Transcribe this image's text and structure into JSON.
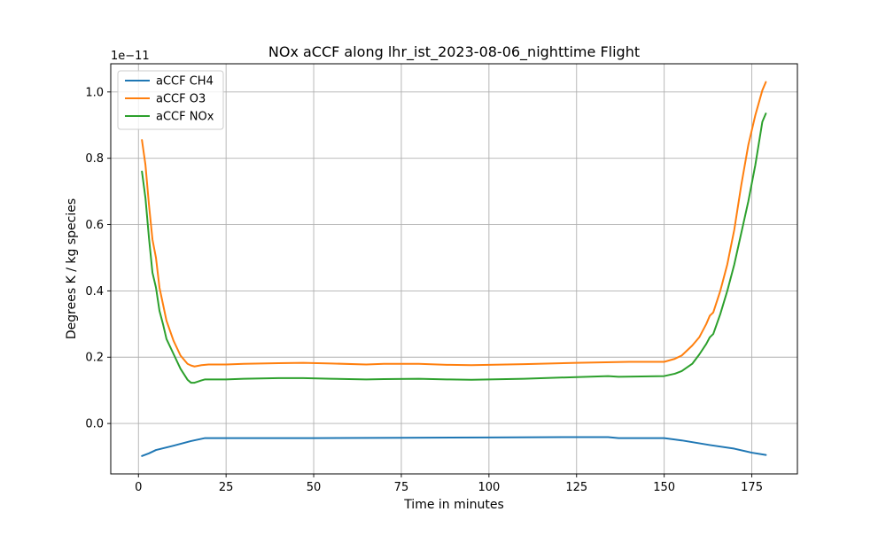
{
  "chart_data": {
    "type": "line",
    "title": "NOx aCCF along lhr_ist_2023-08-06_nighttime Flight",
    "xlabel": "Time in minutes",
    "ylabel": "Degrees K / kg species",
    "y_offset_text": "1e−11",
    "y_scale_factor": 1e-11,
    "xlim": [
      -7.9,
      188.0
    ],
    "ylim": [
      -0.152,
      1.085
    ],
    "x_ticks": [
      0,
      25,
      50,
      75,
      100,
      125,
      150,
      175
    ],
    "x_tick_labels": [
      "0",
      "25",
      "50",
      "75",
      "100",
      "125",
      "150",
      "175"
    ],
    "y_ticks": [
      0.0,
      0.2,
      0.4,
      0.6,
      0.8,
      1.0
    ],
    "y_tick_labels": [
      "0.0",
      "0.2",
      "0.4",
      "0.6",
      "0.8",
      "1.0"
    ],
    "grid": true,
    "legend_position": "upper-left",
    "series": [
      {
        "name": "aCCF CH4",
        "color": "#1f77b4",
        "x": [
          1,
          3,
          5,
          10,
          15,
          19,
          25,
          50,
          75,
          100,
          125,
          134,
          137,
          150,
          155,
          163,
          170,
          175,
          179
        ],
        "y": [
          -0.098,
          -0.09,
          -0.08,
          -0.067,
          -0.053,
          -0.044,
          -0.044,
          -0.044,
          -0.043,
          -0.042,
          -0.041,
          -0.041,
          -0.044,
          -0.044,
          -0.051,
          -0.065,
          -0.076,
          -0.088,
          -0.095
        ]
      },
      {
        "name": "aCCF O3",
        "color": "#ff7f0e",
        "x": [
          1,
          2,
          3,
          4,
          5,
          6,
          7,
          8,
          10,
          12,
          14,
          15,
          16,
          18,
          20,
          25,
          30,
          40,
          47,
          55,
          65,
          70,
          80,
          88,
          95,
          110,
          125,
          140,
          150,
          153,
          155,
          158,
          160,
          162,
          163,
          164,
          166,
          168,
          170,
          172,
          174,
          176,
          178,
          179
        ],
        "y": [
          0.855,
          0.78,
          0.66,
          0.555,
          0.5,
          0.41,
          0.36,
          0.31,
          0.25,
          0.205,
          0.18,
          0.175,
          0.172,
          0.176,
          0.178,
          0.178,
          0.18,
          0.182,
          0.183,
          0.181,
          0.178,
          0.18,
          0.18,
          0.177,
          0.176,
          0.179,
          0.183,
          0.186,
          0.186,
          0.195,
          0.205,
          0.235,
          0.26,
          0.3,
          0.325,
          0.335,
          0.4,
          0.48,
          0.585,
          0.72,
          0.84,
          0.93,
          1.005,
          1.03
        ]
      },
      {
        "name": "aCCF NOx",
        "color": "#2ca02c",
        "x": [
          1,
          2,
          3,
          4,
          5,
          6,
          7,
          8,
          10,
          12,
          14,
          15,
          16,
          18,
          19,
          25,
          30,
          40,
          47,
          55,
          65,
          70,
          80,
          88,
          95,
          110,
          125,
          134,
          137,
          150,
          153,
          155,
          158,
          160,
          162,
          163,
          164,
          166,
          168,
          170,
          172,
          174,
          176,
          178,
          179
        ],
        "y": [
          0.76,
          0.68,
          0.56,
          0.455,
          0.41,
          0.34,
          0.3,
          0.255,
          0.21,
          0.165,
          0.132,
          0.123,
          0.123,
          0.13,
          0.133,
          0.133,
          0.135,
          0.137,
          0.137,
          0.135,
          0.133,
          0.134,
          0.135,
          0.133,
          0.132,
          0.135,
          0.14,
          0.143,
          0.141,
          0.143,
          0.15,
          0.158,
          0.18,
          0.208,
          0.24,
          0.26,
          0.27,
          0.33,
          0.4,
          0.48,
          0.575,
          0.67,
          0.78,
          0.91,
          0.935
        ]
      }
    ]
  }
}
